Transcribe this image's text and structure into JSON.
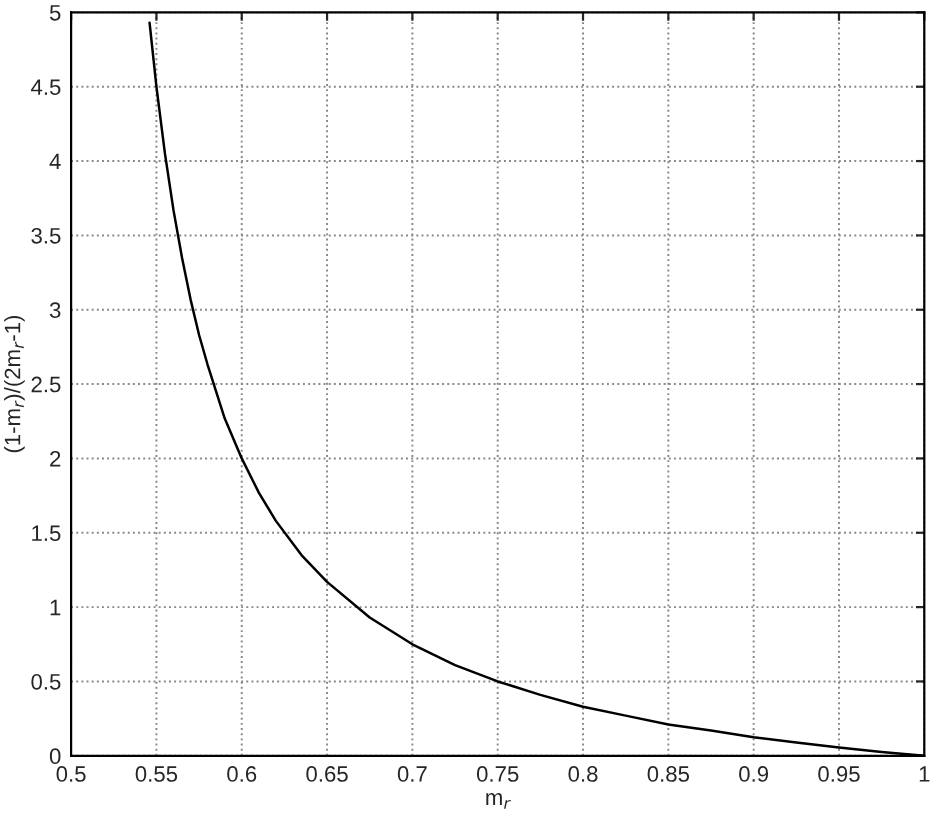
{
  "chart_data": {
    "type": "line",
    "xlabel": "m$_{r}$",
    "ylabel": "(1-m$_{r}$)/(2m$_{r}$-1)",
    "x": [
      0.546,
      0.55,
      0.555,
      0.56,
      0.565,
      0.57,
      0.575,
      0.58,
      0.59,
      0.6,
      0.61,
      0.62,
      0.635,
      0.65,
      0.675,
      0.7,
      0.725,
      0.75,
      0.775,
      0.8,
      0.825,
      0.85,
      0.875,
      0.9,
      0.925,
      0.95,
      0.975,
      1.0
    ],
    "series": [
      {
        "color": "#000000",
        "values": [
          4.93,
          4.5,
          4.05,
          3.67,
          3.35,
          3.07,
          2.83,
          2.63,
          2.27,
          2.0,
          1.77,
          1.58,
          1.35,
          1.17,
          0.93,
          0.75,
          0.61,
          0.5,
          0.41,
          0.33,
          0.27,
          0.21,
          0.17,
          0.125,
          0.09,
          0.056,
          0.026,
          0.0
        ]
      }
    ],
    "xlim": [
      0.5,
      1
    ],
    "ylim": [
      0,
      5
    ],
    "xticks": [
      0.5,
      0.55,
      0.6,
      0.65,
      0.7,
      0.75,
      0.8,
      0.85,
      0.9,
      0.95,
      1
    ],
    "yticks": [
      0,
      0.5,
      1,
      1.5,
      2,
      2.5,
      3,
      3.5,
      4,
      4.5,
      5
    ],
    "grid": true,
    "marker": "none",
    "line_style": "solid"
  }
}
